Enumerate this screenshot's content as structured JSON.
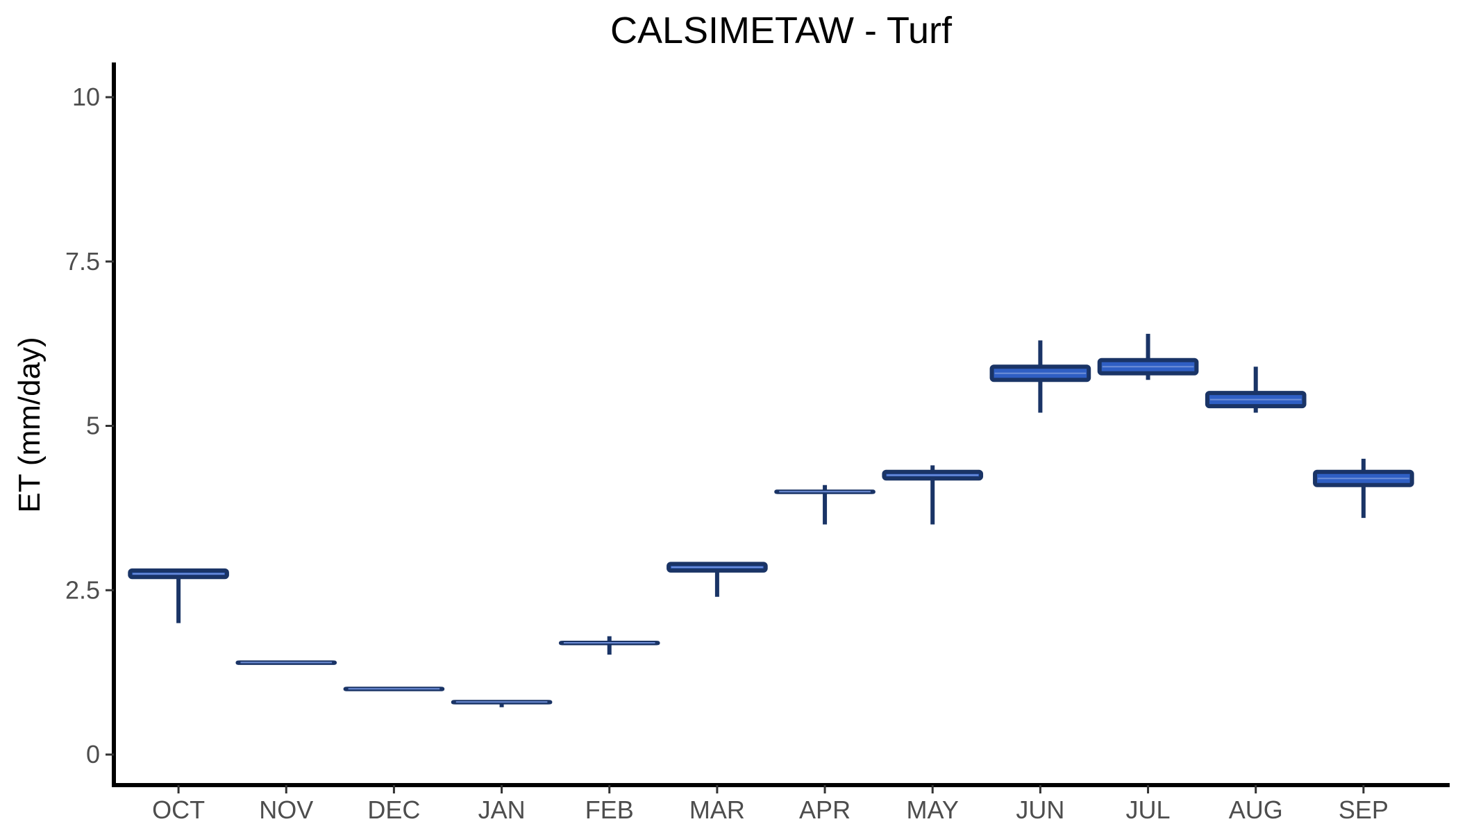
{
  "chart_data": {
    "type": "box",
    "title": "CALSIMETAW - Turf",
    "xlabel": "",
    "ylabel": "ET (mm/day)",
    "ylim": [
      -0.5,
      10.5
    ],
    "yticks": [
      0,
      2.5,
      5,
      7.5,
      10
    ],
    "ytick_labels": [
      "0",
      "2.5",
      "5",
      "7.5",
      "10"
    ],
    "grid": false,
    "legend": "none",
    "colors": {
      "fill": "#2f5fc4",
      "outline": "#1a3466",
      "median": "#6f8fd8"
    },
    "categories": [
      "OCT",
      "NOV",
      "DEC",
      "JAN",
      "FEB",
      "MAR",
      "APR",
      "MAY",
      "JUN",
      "JUL",
      "AUG",
      "SEP"
    ],
    "boxes": [
      {
        "category": "OCT",
        "min": 2.0,
        "q1": 2.7,
        "median": 2.75,
        "q3": 2.8,
        "max": 2.8
      },
      {
        "category": "NOV",
        "min": 1.4,
        "q1": 1.4,
        "median": 1.4,
        "q3": 1.4,
        "max": 1.4
      },
      {
        "category": "DEC",
        "min": 1.0,
        "q1": 1.0,
        "median": 1.0,
        "q3": 1.0,
        "max": 1.0
      },
      {
        "category": "JAN",
        "min": 0.72,
        "q1": 0.8,
        "median": 0.8,
        "q3": 0.8,
        "max": 0.8
      },
      {
        "category": "FEB",
        "min": 1.52,
        "q1": 1.7,
        "median": 1.7,
        "q3": 1.7,
        "max": 1.8
      },
      {
        "category": "MAR",
        "min": 2.4,
        "q1": 2.8,
        "median": 2.85,
        "q3": 2.9,
        "max": 2.9
      },
      {
        "category": "APR",
        "min": 3.5,
        "q1": 4.0,
        "median": 4.0,
        "q3": 4.0,
        "max": 4.1
      },
      {
        "category": "MAY",
        "min": 3.5,
        "q1": 4.2,
        "median": 4.25,
        "q3": 4.3,
        "max": 4.4
      },
      {
        "category": "JUN",
        "min": 5.2,
        "q1": 5.7,
        "median": 5.8,
        "q3": 5.9,
        "max": 6.3
      },
      {
        "category": "JUL",
        "min": 5.7,
        "q1": 5.8,
        "median": 5.9,
        "q3": 6.0,
        "max": 6.4
      },
      {
        "category": "AUG",
        "min": 5.2,
        "q1": 5.3,
        "median": 5.4,
        "q3": 5.5,
        "max": 5.9
      },
      {
        "category": "SEP",
        "min": 3.6,
        "q1": 4.1,
        "median": 4.2,
        "q3": 4.3,
        "max": 4.5
      }
    ]
  }
}
